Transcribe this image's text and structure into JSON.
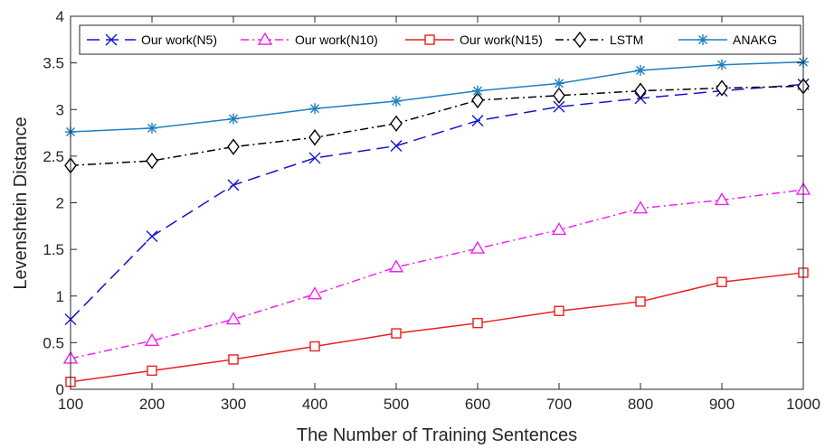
{
  "chart_data": {
    "type": "line",
    "xlabel": "The Number of Training Sentences",
    "ylabel": "Levenshtein Distance",
    "xlim": [
      100,
      1000
    ],
    "ylim": [
      0,
      4
    ],
    "x_ticks": [
      100,
      200,
      300,
      400,
      500,
      600,
      700,
      800,
      900,
      1000
    ],
    "y_ticks": [
      0,
      0.5,
      1,
      1.5,
      2,
      2.5,
      3,
      3.5,
      4
    ],
    "y_tick_labels": [
      "0",
      "0.5",
      "1",
      "1.5",
      "2",
      "2.5",
      "3",
      "3.5",
      "4"
    ],
    "grid": false,
    "legend_position": "top",
    "x": [
      100,
      200,
      300,
      400,
      500,
      600,
      700,
      800,
      900,
      1000
    ],
    "series": [
      {
        "name": "Our work(N5)",
        "color": "#1515d0",
        "dash": "14,7",
        "marker": "x",
        "values": [
          0.75,
          1.64,
          2.19,
          2.48,
          2.61,
          2.88,
          3.03,
          3.12,
          3.2,
          3.27
        ]
      },
      {
        "name": "Our work(N10)",
        "color": "#f020f0",
        "dash": "9,4,2,4",
        "marker": "triangle",
        "values": [
          0.33,
          0.52,
          0.75,
          1.02,
          1.31,
          1.51,
          1.71,
          1.94,
          2.03,
          2.14
        ]
      },
      {
        "name": "Our work(N15)",
        "color": "#e82020",
        "dash": "",
        "marker": "square",
        "values": [
          0.08,
          0.2,
          0.32,
          0.46,
          0.6,
          0.71,
          0.84,
          0.94,
          1.15,
          1.25
        ]
      },
      {
        "name": "LSTM",
        "color": "#000000",
        "dash": "9,4,2,4",
        "marker": "diamond",
        "values": [
          2.4,
          2.45,
          2.6,
          2.7,
          2.85,
          3.1,
          3.15,
          3.2,
          3.23,
          3.25
        ]
      },
      {
        "name": "ANAKG",
        "color": "#1f7fc2",
        "dash": "",
        "marker": "asterisk",
        "values": [
          2.76,
          2.8,
          2.9,
          3.01,
          3.09,
          3.2,
          3.28,
          3.42,
          3.48,
          3.51
        ]
      }
    ]
  }
}
